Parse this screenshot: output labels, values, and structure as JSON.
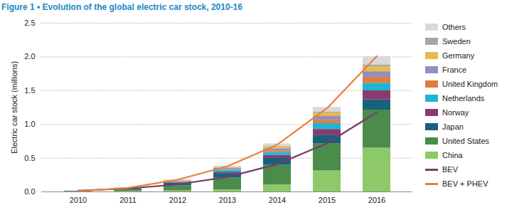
{
  "chart_data": {
    "type": "bar",
    "title": "Figure 1 • Evolution of the global electric car stock, 2010-16",
    "y_label": "Electric car stock (millions)",
    "categories": [
      "2010",
      "2011",
      "2012",
      "2013",
      "2014",
      "2015",
      "2016"
    ],
    "stacked": true,
    "grid": true,
    "legend": "right",
    "ylim": [
      0,
      2.5
    ],
    "yticks": [
      {
        "value": 0,
        "label": "0.0"
      },
      0.5,
      {
        "value": 1,
        "label": "1.0"
      },
      1.5,
      {
        "value": 2,
        "label": "2.0"
      },
      2.5
    ],
    "series": [
      {
        "name": "Others",
        "type": "bar",
        "color": "#d9d9d9",
        "values": [
          0.002,
          0.004,
          0.01,
          0.02,
          0.04,
          0.07,
          0.12
        ]
      },
      {
        "name": "Sweden",
        "type": "bar",
        "color": "#a6a6a6",
        "values": [
          0.0,
          0.0,
          0.001,
          0.003,
          0.007,
          0.015,
          0.029
        ]
      },
      {
        "name": "Germany",
        "type": "bar",
        "color": "#e8b94a",
        "values": [
          0.0003,
          0.002,
          0.006,
          0.012,
          0.025,
          0.049,
          0.073
        ]
      },
      {
        "name": "France",
        "type": "bar",
        "color": "#8f90c2",
        "values": [
          0.0003,
          0.003,
          0.009,
          0.017,
          0.031,
          0.055,
          0.084
        ]
      },
      {
        "name": "United Kingdom",
        "type": "bar",
        "color": "#e07b3c",
        "values": [
          0.001,
          0.002,
          0.005,
          0.009,
          0.024,
          0.049,
          0.087
        ]
      },
      {
        "name": "Netherlands",
        "type": "bar",
        "color": "#1eb4d4",
        "values": [
          0.0003,
          0.002,
          0.007,
          0.029,
          0.045,
          0.088,
          0.112
        ]
      },
      {
        "name": "Norway",
        "type": "bar",
        "color": "#8b3a6c",
        "values": [
          0.003,
          0.005,
          0.01,
          0.02,
          0.044,
          0.084,
          0.134
        ]
      },
      {
        "name": "Japan",
        "type": "bar",
        "color": "#17617f",
        "values": [
          0.003,
          0.013,
          0.04,
          0.069,
          0.101,
          0.126,
          0.151
        ]
      },
      {
        "name": "United States",
        "type": "bar",
        "color": "#4b8b4b",
        "values": [
          0.004,
          0.022,
          0.076,
          0.172,
          0.29,
          0.404,
          0.564
        ]
      },
      {
        "name": "China",
        "type": "bar",
        "color": "#8dc968",
        "values": [
          0.002,
          0.007,
          0.016,
          0.032,
          0.105,
          0.312,
          0.649
        ]
      },
      {
        "name": "BEV",
        "type": "line",
        "color": "#7b3a6f",
        "values": [
          0.017,
          0.05,
          0.11,
          0.22,
          0.41,
          0.72,
          1.18
        ]
      },
      {
        "name": "BEV + PHEV",
        "type": "line",
        "color": "#e8803a",
        "values": [
          0.01,
          0.06,
          0.18,
          0.38,
          0.7,
          1.24,
          2.01
        ]
      }
    ]
  }
}
